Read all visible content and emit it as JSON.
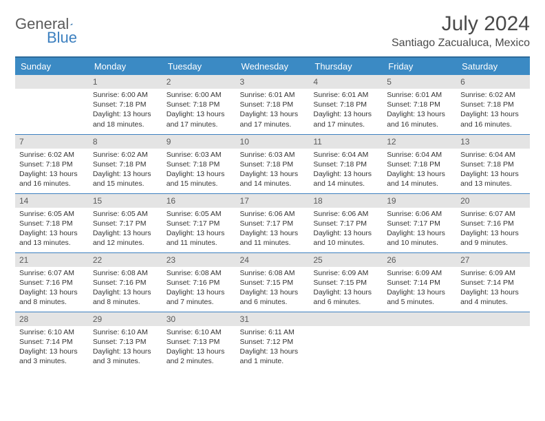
{
  "brand": {
    "part1": "General",
    "part2": "Blue"
  },
  "title": "July 2024",
  "location": "Santiago Zacualuca, Mexico",
  "colors": {
    "header_bg": "#3b8ac4",
    "header_border_top": "#2d6a9a",
    "row_divider": "#3b7fbf",
    "daynum_bg": "#e4e4e4",
    "text": "#333333",
    "title_text": "#4a4a4a",
    "logo_gray": "#5a5a5a",
    "logo_blue": "#3b7fbf",
    "background": "#ffffff"
  },
  "typography": {
    "month_title_size_pt": 22,
    "location_size_pt": 12,
    "weekday_size_pt": 10,
    "daynum_size_pt": 9,
    "body_size_pt": 8,
    "font_family": "Arial"
  },
  "weekdays": [
    "Sunday",
    "Monday",
    "Tuesday",
    "Wednesday",
    "Thursday",
    "Friday",
    "Saturday"
  ],
  "weeks": [
    [
      null,
      {
        "n": "1",
        "sunrise": "Sunrise: 6:00 AM",
        "sunset": "Sunset: 7:18 PM",
        "day1": "Daylight: 13 hours",
        "day2": "and 18 minutes."
      },
      {
        "n": "2",
        "sunrise": "Sunrise: 6:00 AM",
        "sunset": "Sunset: 7:18 PM",
        "day1": "Daylight: 13 hours",
        "day2": "and 17 minutes."
      },
      {
        "n": "3",
        "sunrise": "Sunrise: 6:01 AM",
        "sunset": "Sunset: 7:18 PM",
        "day1": "Daylight: 13 hours",
        "day2": "and 17 minutes."
      },
      {
        "n": "4",
        "sunrise": "Sunrise: 6:01 AM",
        "sunset": "Sunset: 7:18 PM",
        "day1": "Daylight: 13 hours",
        "day2": "and 17 minutes."
      },
      {
        "n": "5",
        "sunrise": "Sunrise: 6:01 AM",
        "sunset": "Sunset: 7:18 PM",
        "day1": "Daylight: 13 hours",
        "day2": "and 16 minutes."
      },
      {
        "n": "6",
        "sunrise": "Sunrise: 6:02 AM",
        "sunset": "Sunset: 7:18 PM",
        "day1": "Daylight: 13 hours",
        "day2": "and 16 minutes."
      }
    ],
    [
      {
        "n": "7",
        "sunrise": "Sunrise: 6:02 AM",
        "sunset": "Sunset: 7:18 PM",
        "day1": "Daylight: 13 hours",
        "day2": "and 16 minutes."
      },
      {
        "n": "8",
        "sunrise": "Sunrise: 6:02 AM",
        "sunset": "Sunset: 7:18 PM",
        "day1": "Daylight: 13 hours",
        "day2": "and 15 minutes."
      },
      {
        "n": "9",
        "sunrise": "Sunrise: 6:03 AM",
        "sunset": "Sunset: 7:18 PM",
        "day1": "Daylight: 13 hours",
        "day2": "and 15 minutes."
      },
      {
        "n": "10",
        "sunrise": "Sunrise: 6:03 AM",
        "sunset": "Sunset: 7:18 PM",
        "day1": "Daylight: 13 hours",
        "day2": "and 14 minutes."
      },
      {
        "n": "11",
        "sunrise": "Sunrise: 6:04 AM",
        "sunset": "Sunset: 7:18 PM",
        "day1": "Daylight: 13 hours",
        "day2": "and 14 minutes."
      },
      {
        "n": "12",
        "sunrise": "Sunrise: 6:04 AM",
        "sunset": "Sunset: 7:18 PM",
        "day1": "Daylight: 13 hours",
        "day2": "and 14 minutes."
      },
      {
        "n": "13",
        "sunrise": "Sunrise: 6:04 AM",
        "sunset": "Sunset: 7:18 PM",
        "day1": "Daylight: 13 hours",
        "day2": "and 13 minutes."
      }
    ],
    [
      {
        "n": "14",
        "sunrise": "Sunrise: 6:05 AM",
        "sunset": "Sunset: 7:18 PM",
        "day1": "Daylight: 13 hours",
        "day2": "and 13 minutes."
      },
      {
        "n": "15",
        "sunrise": "Sunrise: 6:05 AM",
        "sunset": "Sunset: 7:17 PM",
        "day1": "Daylight: 13 hours",
        "day2": "and 12 minutes."
      },
      {
        "n": "16",
        "sunrise": "Sunrise: 6:05 AM",
        "sunset": "Sunset: 7:17 PM",
        "day1": "Daylight: 13 hours",
        "day2": "and 11 minutes."
      },
      {
        "n": "17",
        "sunrise": "Sunrise: 6:06 AM",
        "sunset": "Sunset: 7:17 PM",
        "day1": "Daylight: 13 hours",
        "day2": "and 11 minutes."
      },
      {
        "n": "18",
        "sunrise": "Sunrise: 6:06 AM",
        "sunset": "Sunset: 7:17 PM",
        "day1": "Daylight: 13 hours",
        "day2": "and 10 minutes."
      },
      {
        "n": "19",
        "sunrise": "Sunrise: 6:06 AM",
        "sunset": "Sunset: 7:17 PM",
        "day1": "Daylight: 13 hours",
        "day2": "and 10 minutes."
      },
      {
        "n": "20",
        "sunrise": "Sunrise: 6:07 AM",
        "sunset": "Sunset: 7:16 PM",
        "day1": "Daylight: 13 hours",
        "day2": "and 9 minutes."
      }
    ],
    [
      {
        "n": "21",
        "sunrise": "Sunrise: 6:07 AM",
        "sunset": "Sunset: 7:16 PM",
        "day1": "Daylight: 13 hours",
        "day2": "and 8 minutes."
      },
      {
        "n": "22",
        "sunrise": "Sunrise: 6:08 AM",
        "sunset": "Sunset: 7:16 PM",
        "day1": "Daylight: 13 hours",
        "day2": "and 8 minutes."
      },
      {
        "n": "23",
        "sunrise": "Sunrise: 6:08 AM",
        "sunset": "Sunset: 7:16 PM",
        "day1": "Daylight: 13 hours",
        "day2": "and 7 minutes."
      },
      {
        "n": "24",
        "sunrise": "Sunrise: 6:08 AM",
        "sunset": "Sunset: 7:15 PM",
        "day1": "Daylight: 13 hours",
        "day2": "and 6 minutes."
      },
      {
        "n": "25",
        "sunrise": "Sunrise: 6:09 AM",
        "sunset": "Sunset: 7:15 PM",
        "day1": "Daylight: 13 hours",
        "day2": "and 6 minutes."
      },
      {
        "n": "26",
        "sunrise": "Sunrise: 6:09 AM",
        "sunset": "Sunset: 7:14 PM",
        "day1": "Daylight: 13 hours",
        "day2": "and 5 minutes."
      },
      {
        "n": "27",
        "sunrise": "Sunrise: 6:09 AM",
        "sunset": "Sunset: 7:14 PM",
        "day1": "Daylight: 13 hours",
        "day2": "and 4 minutes."
      }
    ],
    [
      {
        "n": "28",
        "sunrise": "Sunrise: 6:10 AM",
        "sunset": "Sunset: 7:14 PM",
        "day1": "Daylight: 13 hours",
        "day2": "and 3 minutes."
      },
      {
        "n": "29",
        "sunrise": "Sunrise: 6:10 AM",
        "sunset": "Sunset: 7:13 PM",
        "day1": "Daylight: 13 hours",
        "day2": "and 3 minutes."
      },
      {
        "n": "30",
        "sunrise": "Sunrise: 6:10 AM",
        "sunset": "Sunset: 7:13 PM",
        "day1": "Daylight: 13 hours",
        "day2": "and 2 minutes."
      },
      {
        "n": "31",
        "sunrise": "Sunrise: 6:11 AM",
        "sunset": "Sunset: 7:12 PM",
        "day1": "Daylight: 13 hours",
        "day2": "and 1 minute."
      },
      null,
      null,
      null
    ]
  ]
}
